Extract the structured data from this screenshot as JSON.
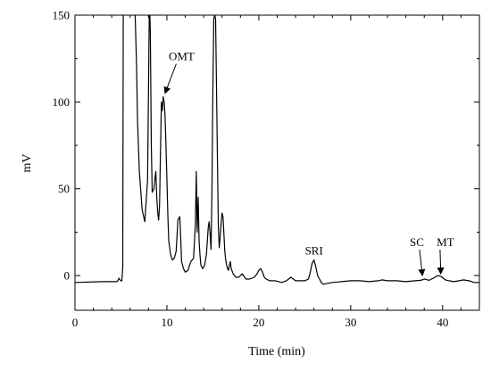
{
  "chart_data": {
    "type": "line",
    "title": "",
    "xlabel": "Time (min)",
    "ylabel": "mV",
    "xlim": [
      0,
      44
    ],
    "ylim": [
      -20,
      150
    ],
    "grid": false,
    "x_ticks": [
      0,
      10,
      20,
      30,
      40
    ],
    "y_ticks": [
      0,
      50,
      100,
      150
    ],
    "x_minor_step": 2,
    "y_minor_step": 25,
    "line_color": "#000000",
    "series": [
      {
        "x": [
          0,
          3,
          4.6,
          4.8,
          4.9,
          5.0,
          5.1,
          5.2,
          5.25,
          5.3,
          5.6,
          6.0,
          6.5,
          6.7,
          6.8,
          7.0,
          7.3,
          7.6,
          7.9,
          8.0,
          8.1,
          8.2,
          8.3,
          8.4,
          8.6,
          8.7,
          8.8,
          8.9,
          9.0,
          9.1,
          9.2,
          9.3,
          9.4,
          9.5,
          9.6,
          9.7,
          9.8,
          9.9,
          10.0,
          10.1,
          10.2,
          10.4,
          10.6,
          10.8,
          11.0,
          11.2,
          11.4,
          11.5,
          11.6,
          11.8,
          12.0,
          12.3,
          12.6,
          12.9,
          13.1,
          13.2,
          13.3,
          13.4,
          13.5,
          13.6,
          13.7,
          13.9,
          14.1,
          14.3,
          14.5,
          14.6,
          14.7,
          14.8,
          14.9,
          15.0,
          15.1,
          15.2,
          15.3,
          15.4,
          15.5,
          15.6,
          15.7,
          15.8,
          15.9,
          16.0,
          16.1,
          16.2,
          16.3,
          16.4,
          16.5,
          16.6,
          16.7,
          16.8,
          16.9,
          17.0,
          17.2,
          17.5,
          17.8,
          18.2,
          18.6,
          19.0,
          19.5,
          19.8,
          20.0,
          20.2,
          20.4,
          20.6,
          20.8,
          21.2,
          21.8,
          22.5,
          23.0,
          23.5,
          24.0,
          24.5,
          25.0,
          25.4,
          25.6,
          25.8,
          26.0,
          26.2,
          26.4,
          26.6,
          26.8,
          27.0,
          27.5,
          28,
          29,
          30,
          31,
          32,
          33,
          33.4,
          34,
          35,
          36,
          37,
          37.5,
          37.8,
          38.0,
          38.2,
          38.5,
          39.0,
          39.3,
          39.6,
          39.8,
          40.0,
          40.3,
          40.7,
          41.2,
          41.8,
          42.3,
          42.6,
          42.9,
          43.4,
          44
        ],
        "y": [
          -4,
          -3.5,
          -3.5,
          -1.5,
          -2.5,
          -3,
          -3,
          5,
          155,
          160,
          160,
          160,
          160,
          120,
          90,
          60,
          38,
          31,
          55,
          110,
          160,
          140,
          75,
          48,
          50,
          56,
          60,
          45,
          36,
          32,
          40,
          70,
          100,
          95,
          103,
          100,
          92,
          75,
          55,
          35,
          20,
          12,
          9,
          10,
          14,
          32,
          34,
          22,
          8,
          4,
          2,
          3,
          8,
          10,
          30,
          60,
          25,
          45,
          20,
          12,
          6,
          4,
          6,
          12,
          28,
          31,
          24,
          15,
          48,
          105,
          148,
          150,
          148,
          105,
          65,
          28,
          16,
          23,
          30,
          36,
          34,
          24,
          14,
          9,
          6,
          4,
          3,
          6,
          8,
          4,
          1,
          -1,
          -1,
          1,
          -2,
          -2,
          -1,
          1,
          3,
          4,
          2,
          -1,
          -2,
          -3,
          -3,
          -4,
          -3,
          -1,
          -3,
          -3,
          -3,
          -2,
          2,
          7,
          9,
          5,
          0,
          -2,
          -4,
          -5,
          -4.5,
          -4,
          -3.5,
          -3,
          -3,
          -3.5,
          -3,
          -2.5,
          -3,
          -3,
          -3.5,
          -3,
          -2.8,
          -2.5,
          -2,
          -2.2,
          -2.8,
          -1.5,
          -0.5,
          0,
          -0.5,
          -1.2,
          -2.5,
          -3,
          -3.5,
          -3,
          -2.5,
          -2.8,
          -3,
          -4,
          -4
        ]
      }
    ],
    "annotations": [
      {
        "text": "OMT",
        "peak_x": 9.8,
        "peak_y": 104,
        "label_x": 11.6,
        "label_y": 124
      },
      {
        "text": "SRI",
        "peak_x": 26.0,
        "peak_y": 9,
        "label_x": 26.0,
        "label_y": 12
      },
      {
        "text": "SC",
        "peak_x": 37.8,
        "peak_y": -1,
        "label_x": 37.2,
        "label_y": 17
      },
      {
        "text": "MT",
        "peak_x": 39.8,
        "peak_y": 0,
        "label_x": 40.3,
        "label_y": 17
      }
    ]
  }
}
